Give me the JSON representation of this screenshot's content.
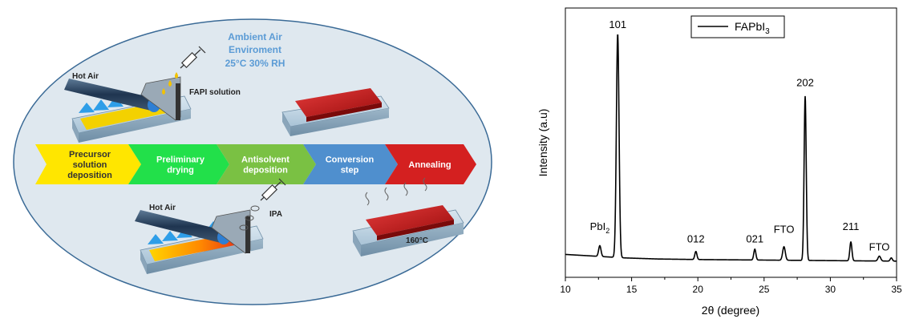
{
  "diagram": {
    "ambient_label": [
      "Ambient Air",
      "Enviroment",
      "25°C 30% RH"
    ],
    "hot_air_top": "Hot Air",
    "hot_air_bottom": "Hot Air",
    "fapi_label": "FAPI solution",
    "ipa_label": "IPA",
    "temp_label": "160°C",
    "steps": [
      {
        "lines": [
          "Precursor",
          "solution",
          "deposition"
        ],
        "color": "#ffe600",
        "text_color": "#333333"
      },
      {
        "lines": [
          "Preliminary",
          "drying"
        ],
        "color": "#22e04a",
        "text_color": "#ffffff"
      },
      {
        "lines": [
          "Antisolvent",
          "deposition"
        ],
        "color": "#7ac143",
        "text_color": "#ffffff"
      },
      {
        "lines": [
          "Conversion",
          "step"
        ],
        "color": "#4f8fce",
        "text_color": "#ffffff"
      },
      {
        "lines": [
          "Annealing"
        ],
        "color": "#d42020",
        "text_color": "#ffffff"
      }
    ],
    "colors": {
      "ellipse_fill": "#dfe8ef",
      "ellipse_stroke": "#3a6a96",
      "ambient_text": "#5b9bd5"
    }
  },
  "chart_data": {
    "type": "line",
    "title": "",
    "xlabel": "2θ (degree)",
    "ylabel": "Intensity (a.u)",
    "xlim": [
      10,
      35
    ],
    "xticks": [
      10,
      15,
      20,
      25,
      30,
      35
    ],
    "ylim": [
      0,
      1
    ],
    "legend": {
      "label": "FAPbI3",
      "label_base": "FAPbI",
      "label_sub": "3",
      "placement": "top-center"
    },
    "series": [
      {
        "name": "FAPbI3",
        "baseline": [
          [
            10,
            0.085
          ],
          [
            14.5,
            0.072
          ],
          [
            17,
            0.068
          ],
          [
            20,
            0.066
          ],
          [
            25,
            0.064
          ],
          [
            30,
            0.062
          ],
          [
            35,
            0.06
          ]
        ],
        "peaks": [
          {
            "x": 12.6,
            "height": 0.04,
            "width": 0.09
          },
          {
            "x": 13.95,
            "height": 0.83,
            "width": 0.1
          },
          {
            "x": 19.85,
            "height": 0.03,
            "width": 0.08
          },
          {
            "x": 24.3,
            "height": 0.04,
            "width": 0.08
          },
          {
            "x": 26.5,
            "height": 0.05,
            "width": 0.1
          },
          {
            "x": 28.1,
            "height": 0.61,
            "width": 0.08
          },
          {
            "x": 31.55,
            "height": 0.07,
            "width": 0.08
          },
          {
            "x": 33.7,
            "height": 0.018,
            "width": 0.1
          },
          {
            "x": 34.6,
            "height": 0.012,
            "width": 0.08
          }
        ]
      }
    ],
    "annotations": [
      {
        "text": "PbI",
        "sub": "2",
        "x": 12.6,
        "y": 0.175
      },
      {
        "text": "101",
        "x": 13.95,
        "y": 0.925
      },
      {
        "text": "012",
        "x": 19.85,
        "y": 0.13
      },
      {
        "text": "021",
        "x": 24.3,
        "y": 0.13
      },
      {
        "text": "FTO",
        "x": 26.5,
        "y": 0.165
      },
      {
        "text": "202",
        "x": 28.1,
        "y": 0.71
      },
      {
        "text": "211",
        "x": 31.55,
        "y": 0.175
      },
      {
        "text": "FTO",
        "x": 33.7,
        "y": 0.1
      }
    ]
  }
}
